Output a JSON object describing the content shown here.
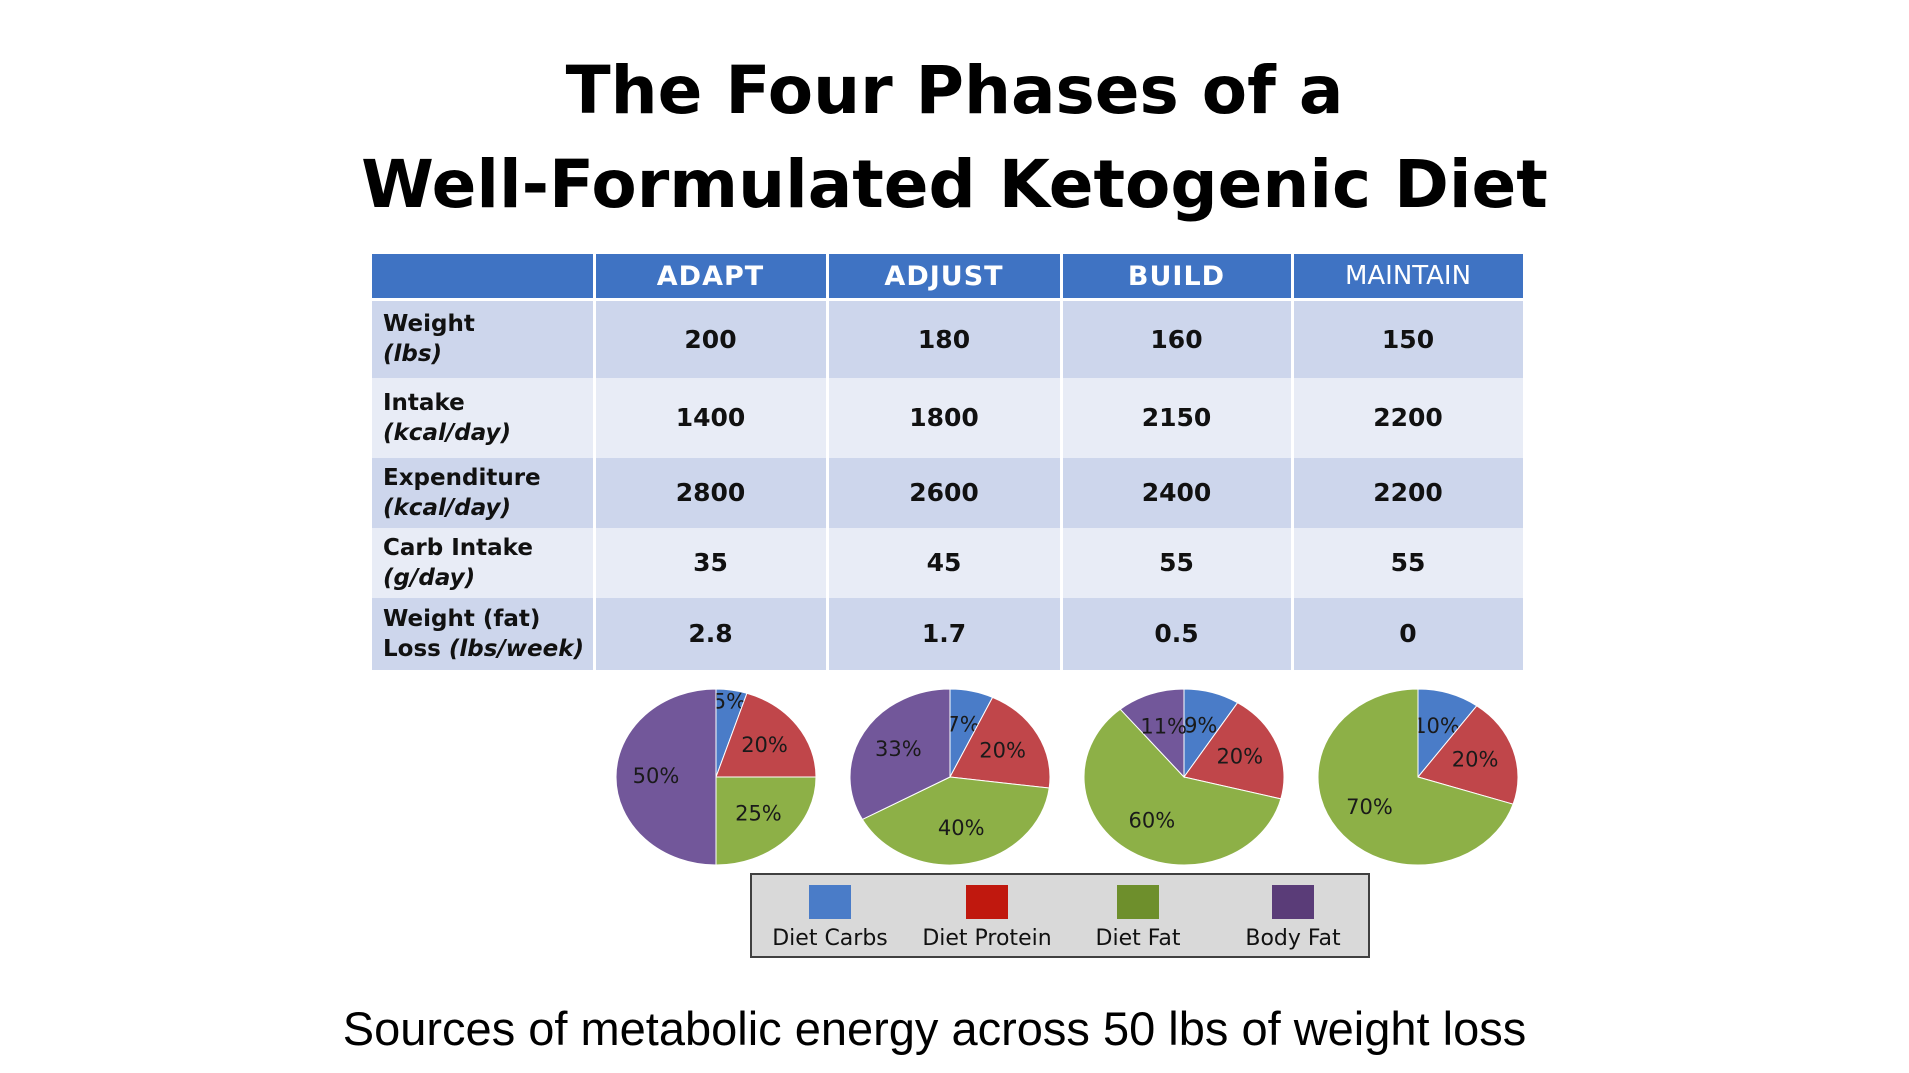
{
  "title_line1": "The Four Phases of a",
  "title_line2": "Well-Formulated Ketogenic Diet",
  "subtitle": "Sources of metabolic energy across 50 lbs of weight loss",
  "table": {
    "corner": "",
    "headers": [
      "ADAPT",
      "ADJUST",
      "BUILD",
      "MAINTAIN"
    ],
    "rows": [
      {
        "label": "Weight",
        "unit": "(lbs)",
        "values": [
          "200",
          "180",
          "160",
          "150"
        ]
      },
      {
        "label": "Intake",
        "unit": "(kcal/day)",
        "values": [
          "1400",
          "1800",
          "2150",
          "2200"
        ]
      },
      {
        "label": "Expenditure",
        "unit": "(kcal/day)",
        "values": [
          "2800",
          "2600",
          "2400",
          "2200"
        ]
      },
      {
        "label": "Carb Intake",
        "unit": "(g/day)",
        "values": [
          "35",
          "45",
          "55",
          "55"
        ]
      },
      {
        "label": "Weight (fat)",
        "label_line2": "Loss",
        "unit": "(lbs/week)",
        "values": [
          "2.8",
          "1.7",
          "0.5",
          "0"
        ]
      }
    ]
  },
  "chart_data": {
    "type": "pie",
    "title": "",
    "categories": [
      "Diet Carbs",
      "Diet Protein",
      "Diet Fat",
      "Body Fat"
    ],
    "colors": {
      "Diet Carbs": "#4a7cc8",
      "Diet Protein": "#c0464a",
      "Diet Fat": "#8db047",
      "Body Fat": "#72579a"
    },
    "legend_colors": {
      "Diet Carbs": "#4a7cc8",
      "Diet Protein": "#c0180e",
      "Diet Fat": "#6e8f2c",
      "Body Fat": "#5a3c78"
    },
    "legend_position": "bottom",
    "pies": [
      {
        "name": "ADAPT",
        "values": [
          5,
          20,
          25,
          50
        ],
        "labels": [
          "5%",
          "20%",
          "25%",
          "50%"
        ]
      },
      {
        "name": "ADJUST",
        "values": [
          7,
          20,
          40,
          33
        ],
        "labels": [
          "7%",
          "20%",
          "40%",
          "33%"
        ]
      },
      {
        "name": "BUILD",
        "values": [
          9,
          20,
          60,
          11
        ],
        "labels": [
          "9%",
          "20%",
          "60%",
          "11%"
        ]
      },
      {
        "name": "MAINTAIN",
        "values": [
          10,
          20,
          70,
          0
        ],
        "labels": [
          "10%",
          "20%",
          "70%",
          ""
        ]
      }
    ]
  }
}
